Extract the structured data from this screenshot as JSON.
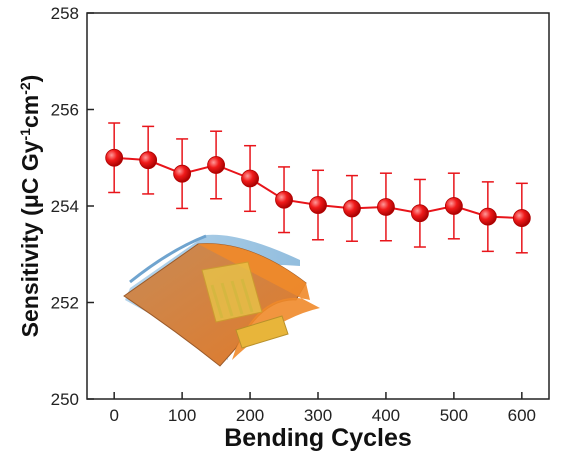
{
  "chart_data": {
    "type": "line",
    "xlabel": "Bending Cycles",
    "ylabel_main": "Sensitivity (μC Gy",
    "ylabel_sup1": "-1",
    "ylabel_mid": "cm",
    "ylabel_sup2": "-2",
    "ylabel_end": ")",
    "xlim": [
      -40,
      640
    ],
    "ylim": [
      250,
      258
    ],
    "xticks": [
      0,
      100,
      200,
      300,
      400,
      500,
      600
    ],
    "yticks": [
      250,
      252,
      254,
      256,
      258
    ],
    "grid": false,
    "color": "#e8141a",
    "series": [
      {
        "x": [
          0,
          50,
          100,
          150,
          200,
          250,
          300,
          350,
          400,
          450,
          500,
          550,
          600
        ],
        "y": [
          255.0,
          254.95,
          254.67,
          254.85,
          254.57,
          254.13,
          254.02,
          253.95,
          253.98,
          253.85,
          254.0,
          253.78,
          253.75
        ],
        "error": [
          0.72,
          0.7,
          0.72,
          0.7,
          0.68,
          0.68,
          0.72,
          0.68,
          0.7,
          0.7,
          0.68,
          0.72,
          0.72
        ]
      }
    ],
    "inset": "flexible-device-illustration"
  }
}
